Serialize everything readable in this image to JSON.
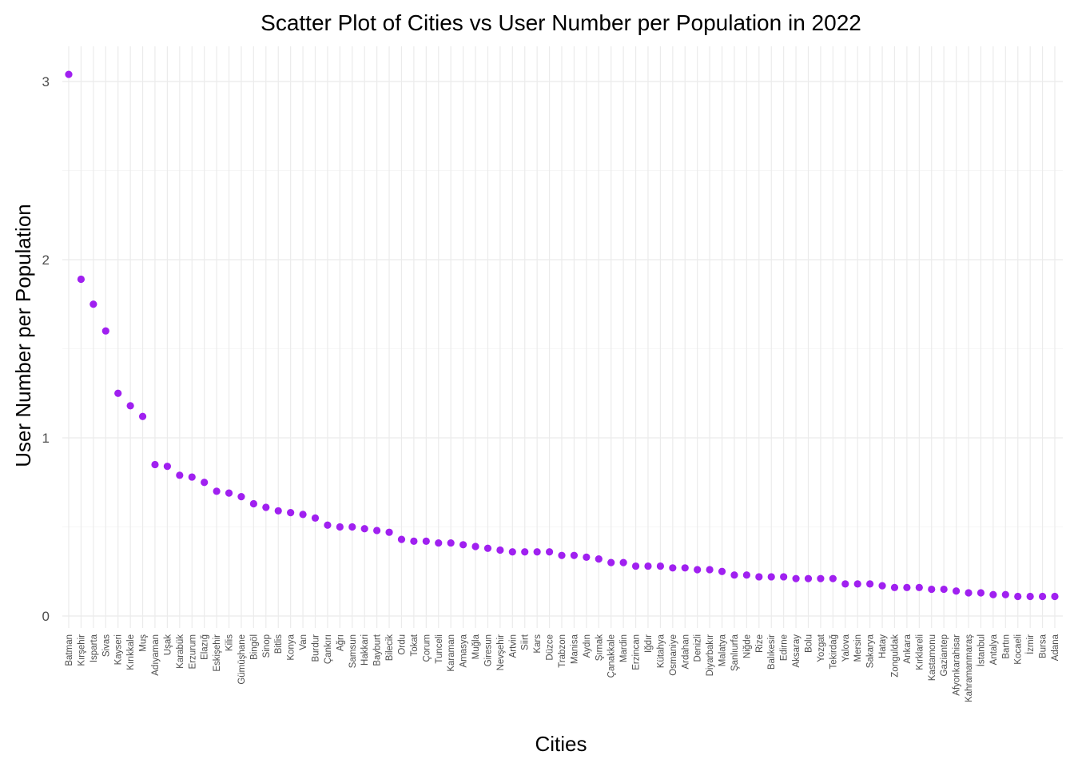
{
  "chart_data": {
    "type": "scatter",
    "title": "Scatter Plot of Cities vs User Number per Population in 2022",
    "xlabel": "Cities",
    "ylabel": "User Number per Population",
    "ylim": [
      0,
      3.2
    ],
    "y_ticks": [
      0,
      1,
      2,
      3
    ],
    "grid": true,
    "legend": "none",
    "point_color": "#a020f0",
    "categories": [
      "Batman",
      "Kırşehir",
      "Isparta",
      "Sivas",
      "Kayseri",
      "Kırıkkale",
      "Muş",
      "Adıyaman",
      "Uşak",
      "Karabük",
      "Erzurum",
      "Elazığ",
      "Eskişehir",
      "Kilis",
      "Gümüşhane",
      "Bingöl",
      "Sinop",
      "Bitlis",
      "Konya",
      "Van",
      "Burdur",
      "Çankırı",
      "Ağrı",
      "Samsun",
      "Hakkari",
      "Bayburt",
      "Bilecik",
      "Ordu",
      "Tokat",
      "Çorum",
      "Tunceli",
      "Karaman",
      "Amasya",
      "Muğla",
      "Giresun",
      "Nevşehir",
      "Artvin",
      "Siirt",
      "Kars",
      "Düzce",
      "Trabzon",
      "Manisa",
      "Aydın",
      "Şırnak",
      "Çanakkale",
      "Mardin",
      "Erzincan",
      "Iğdır",
      "Kütahya",
      "Osmaniye",
      "Ardahan",
      "Denizli",
      "Diyarbakır",
      "Malatya",
      "Şanlıurfa",
      "Niğde",
      "Rize",
      "Balıkesir",
      "Edirne",
      "Aksaray",
      "Bolu",
      "Yozgat",
      "Tekirdağ",
      "Yalova",
      "Mersin",
      "Sakarya",
      "Hatay",
      "Zonguldak",
      "Ankara",
      "Kırklareli",
      "Kastamonu",
      "Gaziantep",
      "Afyonkarahisar",
      "Kahramanmaraş",
      "İstanbul",
      "Antalya",
      "Bartın",
      "Kocaeli",
      "İzmir",
      "Bursa",
      "Adana"
    ],
    "values": [
      3.04,
      1.89,
      1.75,
      1.6,
      1.25,
      1.18,
      1.12,
      0.85,
      0.84,
      0.79,
      0.78,
      0.75,
      0.7,
      0.69,
      0.67,
      0.63,
      0.61,
      0.59,
      0.58,
      0.57,
      0.55,
      0.51,
      0.5,
      0.5,
      0.49,
      0.48,
      0.47,
      0.43,
      0.42,
      0.42,
      0.41,
      0.41,
      0.4,
      0.39,
      0.38,
      0.37,
      0.36,
      0.36,
      0.36,
      0.36,
      0.34,
      0.34,
      0.33,
      0.32,
      0.3,
      0.3,
      0.28,
      0.28,
      0.28,
      0.27,
      0.27,
      0.26,
      0.26,
      0.25,
      0.23,
      0.23,
      0.22,
      0.22,
      0.22,
      0.21,
      0.21,
      0.21,
      0.21,
      0.18,
      0.18,
      0.18,
      0.17,
      0.16,
      0.16,
      0.16,
      0.15,
      0.15,
      0.14,
      0.13,
      0.13,
      0.12,
      0.12,
      0.11,
      0.11,
      0.11,
      0.11
    ]
  }
}
